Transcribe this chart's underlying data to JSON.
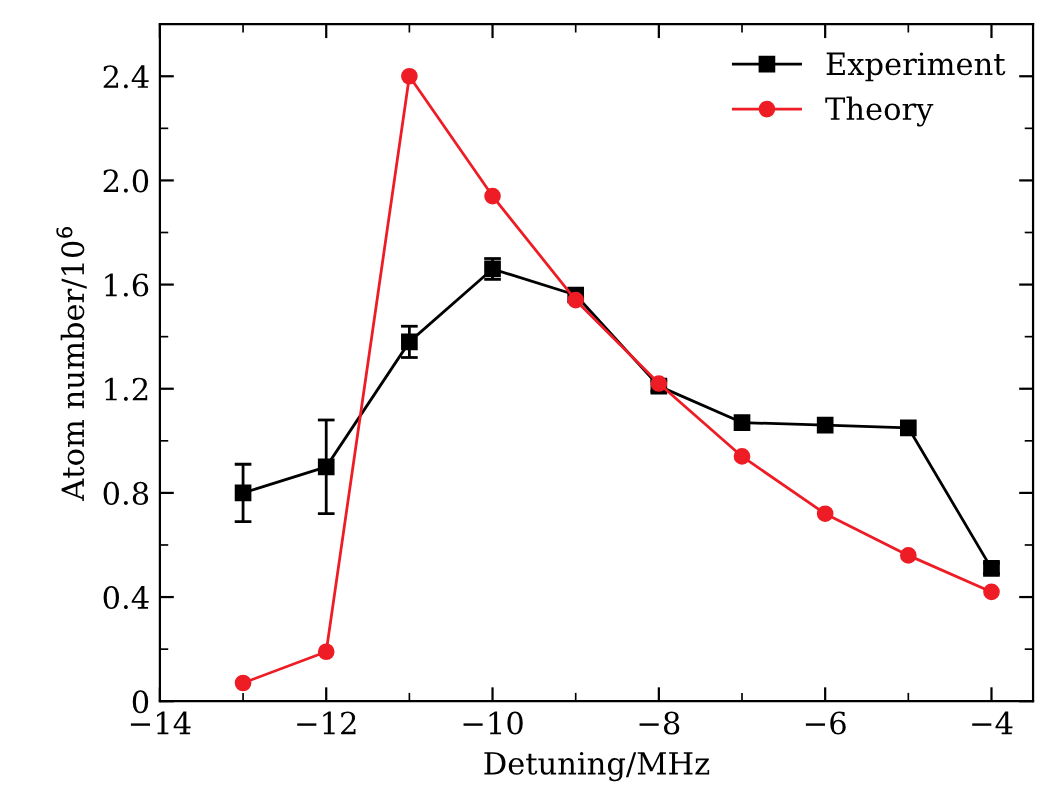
{
  "chart_data": {
    "type": "line",
    "xlabel": "Detuning/MHz",
    "ylabel": "Atom number/10$^{6}$",
    "x": [
      -13,
      -12,
      -11,
      -10,
      -9,
      -8,
      -7,
      -6,
      -5,
      -4
    ],
    "series": [
      {
        "name": "Experiment",
        "color": "#000000",
        "marker": "square",
        "values": [
          0.8,
          0.9,
          1.38,
          1.66,
          1.56,
          1.21,
          1.07,
          1.06,
          1.05,
          0.51
        ],
        "errors": [
          [
            0.69,
            0.91
          ],
          [
            0.72,
            1.08
          ],
          [
            1.32,
            1.44
          ],
          [
            1.62,
            1.7
          ],
          null,
          [
            1.19,
            1.23
          ],
          null,
          null,
          null,
          [
            0.49,
            0.53
          ]
        ]
      },
      {
        "name": "Theory",
        "color": "#ee1c25",
        "marker": "circle",
        "values": [
          0.07,
          0.19,
          2.4,
          1.94,
          1.54,
          1.22,
          0.94,
          0.72,
          0.56,
          0.42
        ]
      }
    ],
    "xlim": [
      -14,
      -3.5
    ],
    "xticks": [
      -14,
      -12,
      -10,
      -8,
      -6,
      -4
    ],
    "ylim": [
      0,
      2.6
    ],
    "yticks": [
      0,
      0.4,
      0.8,
      1.2,
      1.6,
      {
        "value": 2,
        "label": "2.0"
      },
      2.4
    ],
    "grid": false,
    "legend": "top right",
    "line_style": "solid"
  }
}
